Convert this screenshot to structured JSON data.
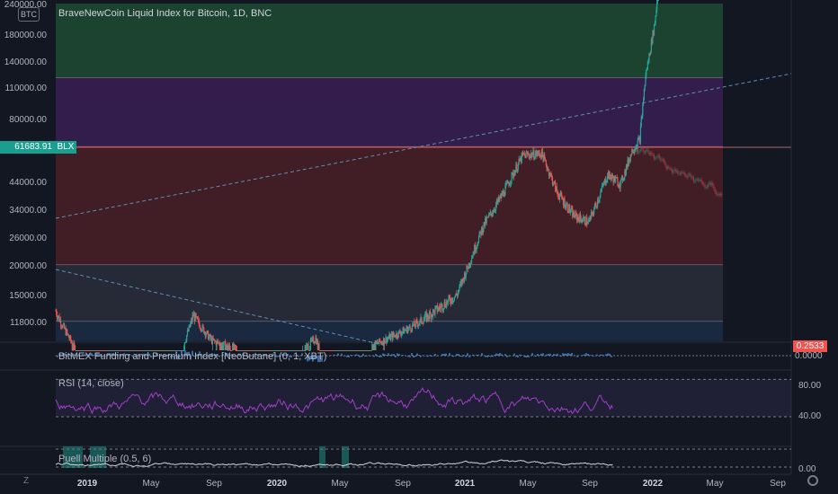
{
  "chart_data": [
    {
      "type": "candlestick",
      "title": "BraveNewCoin Liquid Index for Bitcoin, 1D, BNC",
      "currency_badge": "BTC",
      "price_badge": {
        "value": "61683.91",
        "label": "BLX"
      },
      "y_ticks": [
        "240000.00",
        "180000.00",
        "140000.00",
        "110000.00",
        "80000.00",
        "61683.91",
        "44000.00",
        "34000.00",
        "26000.00",
        "20000.00",
        "15000.00",
        "11800.00"
      ],
      "log_scale": true,
      "zones": [
        {
          "from": 120000,
          "to": 240000,
          "color": "#1e4a33"
        },
        {
          "from": 62000,
          "to": 120000,
          "color": "#3a1f55"
        },
        {
          "from": 20000,
          "to": 62000,
          "color": "#4a1f26"
        },
        {
          "from": 11800,
          "to": 20000,
          "color": "#2a2e39"
        },
        {
          "from": 9000,
          "to": 11800,
          "color": "#1c2b45"
        }
      ],
      "x_ticks": [
        "2019",
        "May",
        "Sep",
        "2020",
        "May",
        "Sep",
        "2021",
        "May",
        "Sep",
        "2022",
        "May",
        "Sep"
      ],
      "price_series": {
        "name": "BLX",
        "x_start": 2018.75,
        "x_end": 2021.92,
        "up_color": "#26a69a",
        "down_color": "#ef5350"
      },
      "ghost_series": {
        "x_start": 2021.4,
        "x_end": 2022.2
      }
    },
    {
      "type": "area",
      "title": "BitMEX Funding and Premium Index [NeoButane] (0, 1, XBT)",
      "last_value": "0.2533",
      "y_ticks": [
        "0.0000"
      ]
    },
    {
      "type": "line",
      "title": "RSI (14, close)",
      "y_ticks": [
        "80.00",
        "40.00"
      ],
      "band": [
        40,
        80
      ]
    },
    {
      "type": "line",
      "title": "Puell Multiple (0.5, 6)",
      "y_ticks": [
        "0.00"
      ]
    }
  ],
  "toolbar": {
    "left_icon": "magnet-icon",
    "right_icon": "settings-icon",
    "z_label": "Z"
  }
}
